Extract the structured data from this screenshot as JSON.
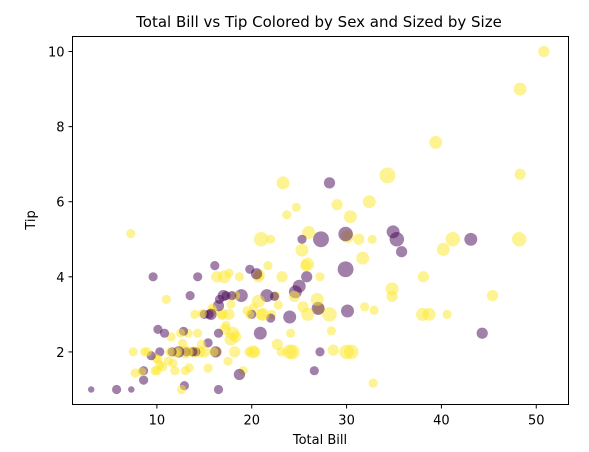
{
  "chart_data": {
    "type": "scatter",
    "title": "Total Bill vs Tip Colored by Sex and Sized by Size",
    "xlabel": "Total Bill",
    "ylabel": "Tip",
    "xlim": [
      1.1,
      53.4
    ],
    "ylim": [
      0.6,
      10.4
    ],
    "xticks": [
      10,
      20,
      30,
      40,
      50
    ],
    "yticks": [
      2,
      4,
      6,
      8,
      10
    ],
    "grid": false,
    "colors": {
      "female": "#fde725",
      "male": "#440154"
    },
    "points": [
      {
        "x": 50.8,
        "y": 10.0,
        "size": 3,
        "sex": "female"
      },
      {
        "x": 48.3,
        "y": 9.0,
        "size": 4,
        "sex": "female"
      },
      {
        "x": 48.3,
        "y": 6.73,
        "size": 3,
        "sex": "female"
      },
      {
        "x": 48.2,
        "y": 5.0,
        "size": 5,
        "sex": "female"
      },
      {
        "x": 45.4,
        "y": 3.5,
        "size": 3,
        "sex": "female"
      },
      {
        "x": 44.3,
        "y": 2.5,
        "size": 3,
        "sex": "male"
      },
      {
        "x": 43.1,
        "y": 5.0,
        "size": 4,
        "sex": "male"
      },
      {
        "x": 41.2,
        "y": 5.0,
        "size": 5,
        "sex": "female"
      },
      {
        "x": 40.6,
        "y": 3.0,
        "size": 2,
        "sex": "female"
      },
      {
        "x": 40.2,
        "y": 4.73,
        "size": 4,
        "sex": "female"
      },
      {
        "x": 39.4,
        "y": 7.58,
        "size": 4,
        "sex": "female"
      },
      {
        "x": 38.7,
        "y": 3.0,
        "size": 4,
        "sex": "female"
      },
      {
        "x": 38.1,
        "y": 4.0,
        "size": 3,
        "sex": "female"
      },
      {
        "x": 38.0,
        "y": 3.0,
        "size": 4,
        "sex": "female"
      },
      {
        "x": 35.8,
        "y": 4.67,
        "size": 3,
        "sex": "male"
      },
      {
        "x": 35.3,
        "y": 5.0,
        "size": 5,
        "sex": "male"
      },
      {
        "x": 34.9,
        "y": 5.2,
        "size": 4,
        "sex": "male"
      },
      {
        "x": 34.8,
        "y": 3.48,
        "size": 3,
        "sex": "female"
      },
      {
        "x": 34.8,
        "y": 3.68,
        "size": 4,
        "sex": "female"
      },
      {
        "x": 34.3,
        "y": 6.7,
        "size": 6,
        "sex": "female"
      },
      {
        "x": 32.9,
        "y": 3.11,
        "size": 2,
        "sex": "female"
      },
      {
        "x": 32.8,
        "y": 1.17,
        "size": 2,
        "sex": "female"
      },
      {
        "x": 32.7,
        "y": 5.0,
        "size": 2,
        "sex": "female"
      },
      {
        "x": 32.4,
        "y": 6.0,
        "size": 4,
        "sex": "female"
      },
      {
        "x": 31.9,
        "y": 3.2,
        "size": 2,
        "sex": "female"
      },
      {
        "x": 31.7,
        "y": 4.5,
        "size": 4,
        "sex": "female"
      },
      {
        "x": 31.3,
        "y": 5.0,
        "size": 3,
        "sex": "female"
      },
      {
        "x": 30.4,
        "y": 5.6,
        "size": 4,
        "sex": "female"
      },
      {
        "x": 30.5,
        "y": 2.0,
        "size": 5,
        "sex": "female"
      },
      {
        "x": 30.1,
        "y": 5.07,
        "size": 4,
        "sex": "female"
      },
      {
        "x": 30.1,
        "y": 3.09,
        "size": 4,
        "sex": "male"
      },
      {
        "x": 30.0,
        "y": 2.0,
        "size": 5,
        "sex": "female"
      },
      {
        "x": 29.9,
        "y": 5.14,
        "size": 5,
        "sex": "male"
      },
      {
        "x": 29.9,
        "y": 4.2,
        "size": 6,
        "sex": "male"
      },
      {
        "x": 29.0,
        "y": 5.92,
        "size": 3,
        "sex": "female"
      },
      {
        "x": 28.6,
        "y": 2.05,
        "size": 3,
        "sex": "female"
      },
      {
        "x": 28.4,
        "y": 2.56,
        "size": 2,
        "sex": "female"
      },
      {
        "x": 28.2,
        "y": 3.0,
        "size": 5,
        "sex": "female"
      },
      {
        "x": 28.2,
        "y": 6.5,
        "size": 3,
        "sex": "male"
      },
      {
        "x": 27.3,
        "y": 5.0,
        "size": 6,
        "sex": "male"
      },
      {
        "x": 27.2,
        "y": 2.0,
        "size": 2,
        "sex": "male"
      },
      {
        "x": 27.2,
        "y": 4.0,
        "size": 2,
        "sex": "female"
      },
      {
        "x": 27.1,
        "y": 3.14,
        "size": 3,
        "sex": "female"
      },
      {
        "x": 27.0,
        "y": 3.16,
        "size": 4,
        "sex": "male"
      },
      {
        "x": 26.9,
        "y": 3.4,
        "size": 4,
        "sex": "female"
      },
      {
        "x": 26.6,
        "y": 1.5,
        "size": 2,
        "sex": "male"
      },
      {
        "x": 26.0,
        "y": 5.18,
        "size": 4,
        "sex": "female"
      },
      {
        "x": 25.9,
        "y": 4.34,
        "size": 4,
        "sex": "female"
      },
      {
        "x": 25.9,
        "y": 3.0,
        "size": 4,
        "sex": "female"
      },
      {
        "x": 25.8,
        "y": 4.0,
        "size": 3,
        "sex": "male"
      },
      {
        "x": 25.7,
        "y": 4.3,
        "size": 3,
        "sex": "female"
      },
      {
        "x": 25.4,
        "y": 3.2,
        "size": 3,
        "sex": "female"
      },
      {
        "x": 25.3,
        "y": 4.71,
        "size": 4,
        "sex": "female"
      },
      {
        "x": 25.3,
        "y": 5.0,
        "size": 2,
        "sex": "male"
      },
      {
        "x": 25.0,
        "y": 3.75,
        "size": 4,
        "sex": "male"
      },
      {
        "x": 24.7,
        "y": 5.85,
        "size": 2,
        "sex": "female"
      },
      {
        "x": 24.6,
        "y": 3.6,
        "size": 4,
        "sex": "male"
      },
      {
        "x": 24.5,
        "y": 3.48,
        "size": 3,
        "sex": "female"
      },
      {
        "x": 24.3,
        "y": 2.0,
        "size": 5,
        "sex": "female"
      },
      {
        "x": 24.1,
        "y": 2.5,
        "size": 2,
        "sex": "female"
      },
      {
        "x": 24.0,
        "y": 2.0,
        "size": 5,
        "sex": "female"
      },
      {
        "x": 24.0,
        "y": 2.93,
        "size": 4,
        "sex": "male"
      },
      {
        "x": 23.7,
        "y": 5.65,
        "size": 2,
        "sex": "female"
      },
      {
        "x": 23.3,
        "y": 6.5,
        "size": 4,
        "sex": "female"
      },
      {
        "x": 23.2,
        "y": 4.0,
        "size": 3,
        "sex": "female"
      },
      {
        "x": 23.1,
        "y": 2.0,
        "size": 2,
        "sex": "female"
      },
      {
        "x": 22.8,
        "y": 3.25,
        "size": 2,
        "sex": "female"
      },
      {
        "x": 22.7,
        "y": 2.2,
        "size": 3,
        "sex": "female"
      },
      {
        "x": 22.5,
        "y": 3.5,
        "size": 2,
        "sex": "female"
      },
      {
        "x": 22.4,
        "y": 3.48,
        "size": 2,
        "sex": "male"
      },
      {
        "x": 22.1,
        "y": 3.0,
        "size": 2,
        "sex": "female"
      },
      {
        "x": 22.0,
        "y": 5.0,
        "size": 2,
        "sex": "female"
      },
      {
        "x": 22.0,
        "y": 2.9,
        "size": 2,
        "sex": "male"
      },
      {
        "x": 21.7,
        "y": 4.3,
        "size": 2,
        "sex": "female"
      },
      {
        "x": 21.6,
        "y": 3.5,
        "size": 4,
        "sex": "male"
      },
      {
        "x": 21.2,
        "y": 3.0,
        "size": 4,
        "sex": "female"
      },
      {
        "x": 21.0,
        "y": 5.0,
        "size": 5,
        "sex": "female"
      },
      {
        "x": 21.0,
        "y": 3.0,
        "size": 3,
        "sex": "female"
      },
      {
        "x": 20.9,
        "y": 2.5,
        "size": 4,
        "sex": "male"
      },
      {
        "x": 20.8,
        "y": 4.05,
        "size": 3,
        "sex": "female"
      },
      {
        "x": 20.7,
        "y": 3.35,
        "size": 4,
        "sex": "female"
      },
      {
        "x": 20.7,
        "y": 4.0,
        "size": 3,
        "sex": "female"
      },
      {
        "x": 20.5,
        "y": 4.08,
        "size": 3,
        "sex": "male"
      },
      {
        "x": 20.3,
        "y": 2.0,
        "size": 3,
        "sex": "female"
      },
      {
        "x": 20.2,
        "y": 3.18,
        "size": 2,
        "sex": "female"
      },
      {
        "x": 20.1,
        "y": 2.0,
        "size": 4,
        "sex": "female"
      },
      {
        "x": 20.0,
        "y": 3.0,
        "size": 2,
        "sex": "male"
      },
      {
        "x": 19.8,
        "y": 3.0,
        "size": 2,
        "sex": "female"
      },
      {
        "x": 19.8,
        "y": 4.2,
        "size": 2,
        "sex": "male"
      },
      {
        "x": 19.7,
        "y": 2.0,
        "size": 2,
        "sex": "female"
      },
      {
        "x": 19.5,
        "y": 3.1,
        "size": 2,
        "sex": "female"
      },
      {
        "x": 19.1,
        "y": 1.5,
        "size": 2,
        "sex": "female"
      },
      {
        "x": 18.9,
        "y": 3.5,
        "size": 4,
        "sex": "male"
      },
      {
        "x": 18.7,
        "y": 1.4,
        "size": 3,
        "sex": "male"
      },
      {
        "x": 18.7,
        "y": 4.0,
        "size": 2,
        "sex": "female"
      },
      {
        "x": 18.3,
        "y": 3.5,
        "size": 2,
        "sex": "female"
      },
      {
        "x": 18.3,
        "y": 2.4,
        "size": 3,
        "sex": "female"
      },
      {
        "x": 18.2,
        "y": 2.0,
        "size": 3,
        "sex": "female"
      },
      {
        "x": 18.0,
        "y": 2.5,
        "size": 4,
        "sex": "female"
      },
      {
        "x": 17.9,
        "y": 3.5,
        "size": 2,
        "sex": "male"
      },
      {
        "x": 17.8,
        "y": 2.34,
        "size": 4,
        "sex": "female"
      },
      {
        "x": 17.8,
        "y": 3.27,
        "size": 2,
        "sex": "female"
      },
      {
        "x": 17.6,
        "y": 4.1,
        "size": 2,
        "sex": "female"
      },
      {
        "x": 17.6,
        "y": 3.0,
        "size": 3,
        "sex": "female"
      },
      {
        "x": 17.5,
        "y": 1.75,
        "size": 2,
        "sex": "female"
      },
      {
        "x": 17.3,
        "y": 3.5,
        "size": 2,
        "sex": "male"
      },
      {
        "x": 17.3,
        "y": 2.71,
        "size": 2,
        "sex": "female"
      },
      {
        "x": 17.2,
        "y": 2.6,
        "size": 3,
        "sex": "female"
      },
      {
        "x": 17.1,
        "y": 4.0,
        "size": 4,
        "sex": "female"
      },
      {
        "x": 17.0,
        "y": 3.5,
        "size": 3,
        "sex": "male"
      },
      {
        "x": 16.9,
        "y": 3.0,
        "size": 3,
        "sex": "female"
      },
      {
        "x": 16.8,
        "y": 3.0,
        "size": 2,
        "sex": "female"
      },
      {
        "x": 16.6,
        "y": 3.4,
        "size": 2,
        "sex": "male"
      },
      {
        "x": 16.5,
        "y": 3.23,
        "size": 3,
        "sex": "male"
      },
      {
        "x": 16.5,
        "y": 1.0,
        "size": 2,
        "sex": "male"
      },
      {
        "x": 16.5,
        "y": 2.5,
        "size": 2,
        "sex": "male"
      },
      {
        "x": 16.4,
        "y": 2.0,
        "size": 2,
        "sex": "female"
      },
      {
        "x": 16.3,
        "y": 4.0,
        "size": 3,
        "sex": "female"
      },
      {
        "x": 16.2,
        "y": 2.0,
        "size": 3,
        "sex": "male"
      },
      {
        "x": 16.1,
        "y": 4.3,
        "size": 2,
        "sex": "male"
      },
      {
        "x": 16.0,
        "y": 2.0,
        "size": 2,
        "sex": "female"
      },
      {
        "x": 15.9,
        "y": 3.1,
        "size": 2,
        "sex": "female"
      },
      {
        "x": 15.8,
        "y": 3.16,
        "size": 2,
        "sex": "female"
      },
      {
        "x": 15.7,
        "y": 3.0,
        "size": 3,
        "sex": "male"
      },
      {
        "x": 15.5,
        "y": 3.0,
        "size": 2,
        "sex": "male"
      },
      {
        "x": 15.4,
        "y": 1.57,
        "size": 2,
        "sex": "female"
      },
      {
        "x": 15.4,
        "y": 2.24,
        "size": 2,
        "sex": "male"
      },
      {
        "x": 15.0,
        "y": 2.0,
        "size": 3,
        "sex": "female"
      },
      {
        "x": 15.0,
        "y": 3.0,
        "size": 2,
        "sex": "male"
      },
      {
        "x": 14.8,
        "y": 3.02,
        "size": 2,
        "sex": "female"
      },
      {
        "x": 14.7,
        "y": 2.2,
        "size": 2,
        "sex": "female"
      },
      {
        "x": 14.5,
        "y": 2.0,
        "size": 3,
        "sex": "female"
      },
      {
        "x": 14.3,
        "y": 4.0,
        "size": 2,
        "sex": "male"
      },
      {
        "x": 14.3,
        "y": 2.5,
        "size": 2,
        "sex": "female"
      },
      {
        "x": 14.1,
        "y": 2.0,
        "size": 2,
        "sex": "male"
      },
      {
        "x": 14.0,
        "y": 3.0,
        "size": 2,
        "sex": "female"
      },
      {
        "x": 13.9,
        "y": 2.0,
        "size": 3,
        "sex": "female"
      },
      {
        "x": 13.8,
        "y": 2.0,
        "size": 2,
        "sex": "male"
      },
      {
        "x": 13.5,
        "y": 3.5,
        "size": 2,
        "sex": "male"
      },
      {
        "x": 13.4,
        "y": 1.58,
        "size": 2,
        "sex": "female"
      },
      {
        "x": 13.4,
        "y": 2.0,
        "size": 2,
        "sex": "female"
      },
      {
        "x": 13.3,
        "y": 2.5,
        "size": 2,
        "sex": "female"
      },
      {
        "x": 13.1,
        "y": 2.0,
        "size": 2,
        "sex": "male"
      },
      {
        "x": 13.0,
        "y": 1.5,
        "size": 2,
        "sex": "female"
      },
      {
        "x": 13.0,
        "y": 2.0,
        "size": 4,
        "sex": "female"
      },
      {
        "x": 12.9,
        "y": 1.1,
        "size": 2,
        "sex": "male"
      },
      {
        "x": 12.8,
        "y": 2.55,
        "size": 2,
        "sex": "male"
      },
      {
        "x": 12.7,
        "y": 2.23,
        "size": 2,
        "sex": "female"
      },
      {
        "x": 12.6,
        "y": 1.0,
        "size": 2,
        "sex": "female"
      },
      {
        "x": 12.5,
        "y": 2.5,
        "size": 2,
        "sex": "female"
      },
      {
        "x": 12.3,
        "y": 2.0,
        "size": 3,
        "sex": "male"
      },
      {
        "x": 12.2,
        "y": 2.0,
        "size": 2,
        "sex": "female"
      },
      {
        "x": 12.0,
        "y": 1.96,
        "size": 2,
        "sex": "female"
      },
      {
        "x": 11.9,
        "y": 1.5,
        "size": 2,
        "sex": "female"
      },
      {
        "x": 11.7,
        "y": 1.7,
        "size": 2,
        "sex": "female"
      },
      {
        "x": 11.6,
        "y": 2.0,
        "size": 2,
        "sex": "male"
      },
      {
        "x": 11.5,
        "y": 2.4,
        "size": 2,
        "sex": "female"
      },
      {
        "x": 11.4,
        "y": 2.0,
        "size": 2,
        "sex": "female"
      },
      {
        "x": 11.2,
        "y": 1.76,
        "size": 2,
        "sex": "female"
      },
      {
        "x": 11.0,
        "y": 3.4,
        "size": 2,
        "sex": "female"
      },
      {
        "x": 10.8,
        "y": 2.5,
        "size": 2,
        "sex": "male"
      },
      {
        "x": 10.6,
        "y": 1.6,
        "size": 2,
        "sex": "female"
      },
      {
        "x": 10.3,
        "y": 2.0,
        "size": 2,
        "sex": "male"
      },
      {
        "x": 10.3,
        "y": 1.66,
        "size": 2,
        "sex": "female"
      },
      {
        "x": 10.1,
        "y": 1.8,
        "size": 2,
        "sex": "female"
      },
      {
        "x": 10.1,
        "y": 2.6,
        "size": 2,
        "sex": "male"
      },
      {
        "x": 10.0,
        "y": 1.5,
        "size": 2,
        "sex": "female"
      },
      {
        "x": 9.9,
        "y": 1.83,
        "size": 2,
        "sex": "female"
      },
      {
        "x": 9.8,
        "y": 1.5,
        "size": 2,
        "sex": "female"
      },
      {
        "x": 9.6,
        "y": 4.0,
        "size": 2,
        "sex": "male"
      },
      {
        "x": 9.4,
        "y": 1.9,
        "size": 2,
        "sex": "male"
      },
      {
        "x": 9.0,
        "y": 2.0,
        "size": 2,
        "sex": "female"
      },
      {
        "x": 8.7,
        "y": 2.0,
        "size": 2,
        "sex": "female"
      },
      {
        "x": 8.6,
        "y": 1.5,
        "size": 2,
        "sex": "male"
      },
      {
        "x": 8.6,
        "y": 1.25,
        "size": 2,
        "sex": "male"
      },
      {
        "x": 8.4,
        "y": 1.47,
        "size": 2,
        "sex": "female"
      },
      {
        "x": 7.7,
        "y": 1.44,
        "size": 2,
        "sex": "female"
      },
      {
        "x": 7.5,
        "y": 2.0,
        "size": 2,
        "sex": "female"
      },
      {
        "x": 7.3,
        "y": 1.0,
        "size": 1,
        "sex": "male"
      },
      {
        "x": 7.25,
        "y": 5.15,
        "size": 2,
        "sex": "female"
      },
      {
        "x": 5.75,
        "y": 1.0,
        "size": 2,
        "sex": "male"
      },
      {
        "x": 3.07,
        "y": 1.0,
        "size": 1,
        "sex": "male"
      }
    ]
  }
}
